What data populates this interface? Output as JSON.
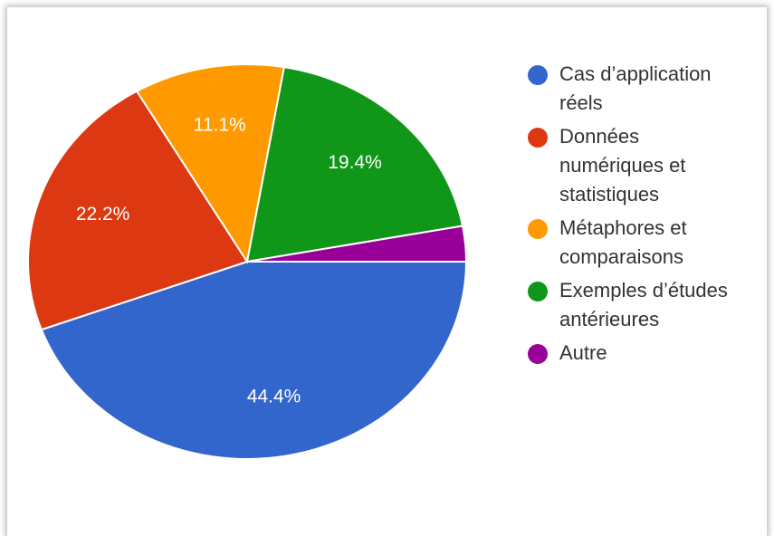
{
  "chart_data": {
    "type": "pie",
    "title": "",
    "slices": [
      {
        "label": "Cas d’application\nréels",
        "value": 44.4,
        "value_label": "44.4%",
        "color": "#3366cc"
      },
      {
        "label": "Données\nnumériques et\nstatistiques",
        "value": 22.2,
        "value_label": "22.2%",
        "color": "#dc3912"
      },
      {
        "label": "Métaphores et\ncomparaisons",
        "value": 11.1,
        "value_label": "11.1%",
        "color": "#ff9900"
      },
      {
        "label": "Exemples d’études\nantérieures",
        "value": 19.4,
        "value_label": "19.4%",
        "color": "#109618"
      },
      {
        "label": "Autre",
        "value": 2.9,
        "value_label": "",
        "color": "#990099"
      }
    ],
    "start": "3 o'clock",
    "direction": "clockwise",
    "legend_position": "right"
  }
}
